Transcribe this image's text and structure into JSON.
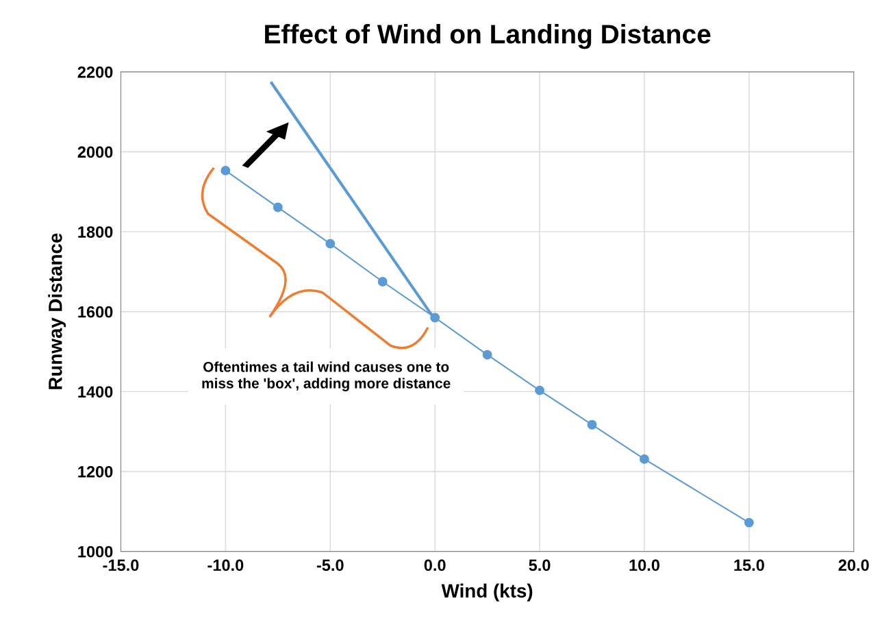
{
  "chart_data": {
    "type": "line",
    "title": "Effect of Wind on Landing Distance",
    "xlabel": "Wind (kts)",
    "ylabel": "Runway Distance",
    "x": [
      -10,
      -7.5,
      -5,
      -2.5,
      0,
      2.5,
      5,
      7.5,
      10,
      15
    ],
    "series": [
      {
        "color": "#5b9bd5",
        "marker": "circle",
        "values": [
          1953,
          1861,
          1770,
          1675,
          1585,
          1492,
          1403,
          1317,
          1231,
          1072
        ]
      },
      {
        "color": "#5b9bd5",
        "marker": "none",
        "x": [
          -0.2,
          -7.8
        ],
        "values": [
          1595,
          2172
        ]
      }
    ],
    "annotations": [
      "Oftentimes a tail wind causes one to miss the 'box', adding more distance"
    ],
    "xlim": [
      -15,
      20
    ],
    "xticks": [
      {
        "value": -15,
        "label": "-15.0"
      },
      {
        "value": -10,
        "label": "-10.0"
      },
      {
        "value": -5,
        "label": "-5.0"
      },
      {
        "value": 0,
        "label": "0.0"
      },
      {
        "value": 5,
        "label": "5.0"
      },
      {
        "value": 10,
        "label": "10.0"
      },
      {
        "value": 15,
        "label": "15.0"
      },
      {
        "value": 20,
        "label": "20.0"
      }
    ],
    "ylim": [
      1000,
      2200
    ],
    "yticks": [
      1000,
      1200,
      1400,
      1600,
      1800,
      2000,
      2200
    ],
    "grid": true
  }
}
